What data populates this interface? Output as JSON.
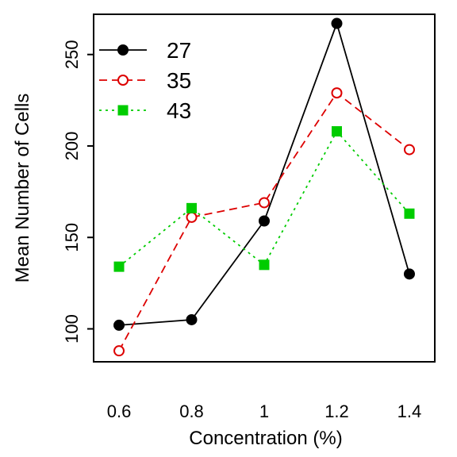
{
  "chart_data": {
    "type": "line",
    "title": "",
    "xlabel": "Concentration (%)",
    "ylabel": "Mean Number of Cells",
    "x": [
      0.6,
      0.8,
      1,
      1.2,
      1.4
    ],
    "x_tick_labels": [
      "0.6",
      "0.8",
      "1",
      "1.2",
      "1.4"
    ],
    "y_ticks": [
      100,
      150,
      200,
      250
    ],
    "y_tick_labels": [
      "100",
      "150",
      "200",
      "250"
    ],
    "xlim": [
      0.53,
      1.47
    ],
    "ylim": [
      82,
      272
    ],
    "grid": false,
    "legend_position": "top-left",
    "series": [
      {
        "name": "27",
        "values": [
          102,
          105,
          159,
          267,
          130
        ],
        "color": "#000000",
        "line_style": "solid",
        "marker": "filled-circle"
      },
      {
        "name": "35",
        "values": [
          88,
          161,
          169,
          229,
          198
        ],
        "color": "#dd0000",
        "line_style": "dashed",
        "marker": "open-circle"
      },
      {
        "name": "43",
        "values": [
          134,
          166,
          135,
          208,
          163
        ],
        "color": "#00cc00",
        "line_style": "dotted",
        "marker": "filled-square"
      }
    ]
  }
}
